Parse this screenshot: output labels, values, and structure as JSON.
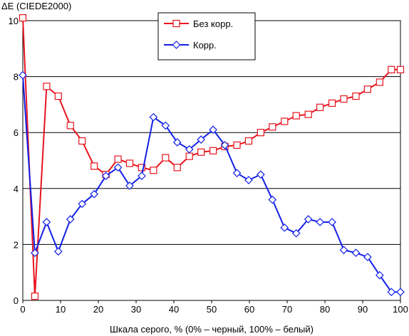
{
  "chart_data": {
    "type": "line",
    "title": "ΔE (CIEDE2000)",
    "xlabel": "Шкала серого, % (0% – черный, 100% – белый)",
    "ylabel": "",
    "xlim": [
      0,
      100
    ],
    "ylim": [
      0,
      10
    ],
    "xticks": [
      0,
      10,
      20,
      30,
      40,
      50,
      60,
      70,
      80,
      90,
      100
    ],
    "yticks": [
      0,
      2,
      4,
      6,
      8,
      10
    ],
    "grid": "horizontal",
    "legend_position": "top-center",
    "series": [
      {
        "name": "Без корр.",
        "color": "#e8141e",
        "marker": "square",
        "x": [
          0,
          3.2,
          6.3,
          9.4,
          12.6,
          15.7,
          18.9,
          22,
          25.2,
          28.3,
          31.5,
          34.6,
          37.8,
          40.9,
          44.1,
          47.2,
          50.4,
          53.5,
          56.7,
          59.8,
          63,
          66.1,
          69.3,
          72.4,
          75.6,
          78.7,
          81.9,
          85,
          88.2,
          91.3,
          94.5,
          97.6,
          100
        ],
        "values": [
          10.1,
          0.15,
          7.65,
          7.3,
          6.25,
          5.7,
          4.8,
          4.5,
          5.05,
          4.9,
          4.75,
          4.65,
          5.1,
          4.75,
          5.15,
          5.3,
          5.35,
          5.5,
          5.55,
          5.7,
          6.0,
          6.2,
          6.4,
          6.6,
          6.65,
          6.9,
          7.05,
          7.2,
          7.3,
          7.55,
          7.8,
          8.25,
          8.25
        ]
      },
      {
        "name": "Корр.",
        "color": "#1420e6",
        "marker": "diamond",
        "x": [
          0,
          3.2,
          6.3,
          9.4,
          12.6,
          15.7,
          18.9,
          22,
          25.2,
          28.3,
          31.5,
          34.6,
          37.8,
          40.9,
          44.1,
          47.2,
          50.4,
          53.5,
          56.7,
          59.8,
          63,
          66.1,
          69.3,
          72.4,
          75.6,
          78.7,
          81.9,
          85,
          88.2,
          91.3,
          94.5,
          97.6,
          100
        ],
        "values": [
          8.05,
          1.7,
          2.8,
          1.75,
          2.9,
          3.45,
          3.8,
          4.45,
          4.75,
          4.1,
          4.45,
          6.55,
          6.25,
          5.65,
          5.4,
          5.75,
          6.1,
          5.55,
          4.55,
          4.3,
          4.5,
          3.6,
          2.6,
          2.4,
          2.9,
          2.8,
          2.8,
          1.8,
          1.7,
          1.55,
          0.9,
          0.3,
          0.3
        ]
      }
    ]
  }
}
